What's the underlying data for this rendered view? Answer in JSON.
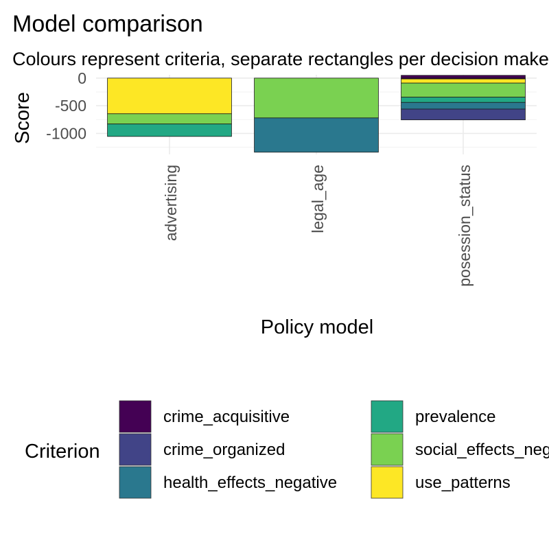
{
  "chart_data": {
    "type": "bar",
    "stacked": true,
    "title": "Model comparison",
    "subtitle": "Colours represent criteria, separate rectangles per decision maker",
    "xlabel": "Policy model",
    "ylabel": "Score",
    "ylim": [
      -1380,
      60
    ],
    "y_ticks": [
      0,
      -500,
      -1000
    ],
    "y_tick_labels": [
      "0",
      "-500",
      "-1000"
    ],
    "categories": [
      "advertising",
      "legal_age",
      "posession_status"
    ],
    "legend_title": "Criterion",
    "legend_position": "bottom",
    "criteria": [
      {
        "name": "crime_acquisitive",
        "color": "#440154"
      },
      {
        "name": "crime_organized",
        "color": "#414487"
      },
      {
        "name": "health_effects_negative",
        "color": "#2A788E"
      },
      {
        "name": "prevalence",
        "color": "#22A884"
      },
      {
        "name": "social_effects_negative",
        "color": "#7AD151"
      },
      {
        "name": "use_patterns",
        "color": "#FDE725"
      }
    ],
    "segments": [
      {
        "category": "advertising",
        "criterion": "use_patterns",
        "from": 0,
        "to": -645
      },
      {
        "category": "advertising",
        "criterion": "social_effects_negative",
        "from": -645,
        "to": -830
      },
      {
        "category": "advertising",
        "criterion": "prevalence",
        "from": -830,
        "to": -1055
      },
      {
        "category": "legal_age",
        "criterion": "social_effects_negative",
        "from": 0,
        "to": -720
      },
      {
        "category": "legal_age",
        "criterion": "health_effects_negative",
        "from": -720,
        "to": -1340
      },
      {
        "category": "posession_status",
        "criterion": "crime_acquisitive",
        "from": 50,
        "to": 0
      },
      {
        "category": "posession_status",
        "criterion": "crime_acquisitive",
        "from": 0,
        "to": -15
      },
      {
        "category": "posession_status",
        "criterion": "use_patterns",
        "from": -15,
        "to": -90
      },
      {
        "category": "posession_status",
        "criterion": "social_effects_negative",
        "from": -90,
        "to": -345
      },
      {
        "category": "posession_status",
        "criterion": "prevalence",
        "from": -345,
        "to": -440
      },
      {
        "category": "posession_status",
        "criterion": "health_effects_negative",
        "from": -440,
        "to": -560
      },
      {
        "category": "posession_status",
        "criterion": "crime_organized",
        "from": -560,
        "to": -755
      }
    ]
  }
}
